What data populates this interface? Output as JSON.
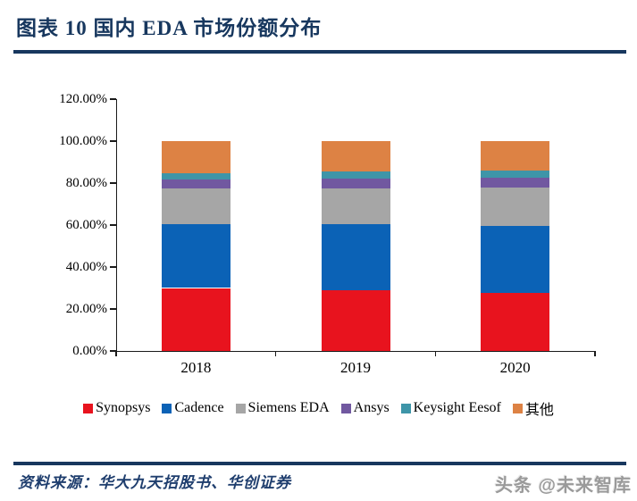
{
  "header": {
    "title": "图表 10  国内 EDA 市场份额分布"
  },
  "chart_data": {
    "type": "bar",
    "stacked": true,
    "title": "国内 EDA 市场份额分布",
    "categories": [
      "2018",
      "2019",
      "2020"
    ],
    "series": [
      {
        "name": "Synopsys",
        "color": "#E8131E",
        "values": [
          30.0,
          29.0,
          27.5
        ]
      },
      {
        "name": "Cadence",
        "color": "#0B62B6",
        "values": [
          30.5,
          31.5,
          32.0
        ]
      },
      {
        "name": "Siemens EDA",
        "color": "#A6A6A6",
        "values": [
          17.0,
          17.0,
          18.5
        ]
      },
      {
        "name": "Ansys",
        "color": "#7158A0",
        "values": [
          4.0,
          4.5,
          4.5
        ]
      },
      {
        "name": "Keysight Eesof",
        "color": "#3E95A8",
        "values": [
          3.0,
          3.5,
          3.5
        ]
      },
      {
        "name": "其他",
        "color": "#DD8244",
        "values": [
          15.5,
          14.5,
          14.0
        ]
      }
    ],
    "xlabel": "",
    "ylabel": "",
    "ylim": [
      0,
      120
    ],
    "y_ticks": [
      "0.00%",
      "20.00%",
      "40.00%",
      "60.00%",
      "80.00%",
      "100.00%",
      "120.00%"
    ],
    "grid": false,
    "legend_position": "bottom"
  },
  "footer": {
    "source": "资料来源：华大九天招股书、华创证券",
    "watermark": "头条 @未来智库"
  },
  "colors": {
    "accent_navy": "#17375E",
    "axis": "#1a1a1a"
  }
}
